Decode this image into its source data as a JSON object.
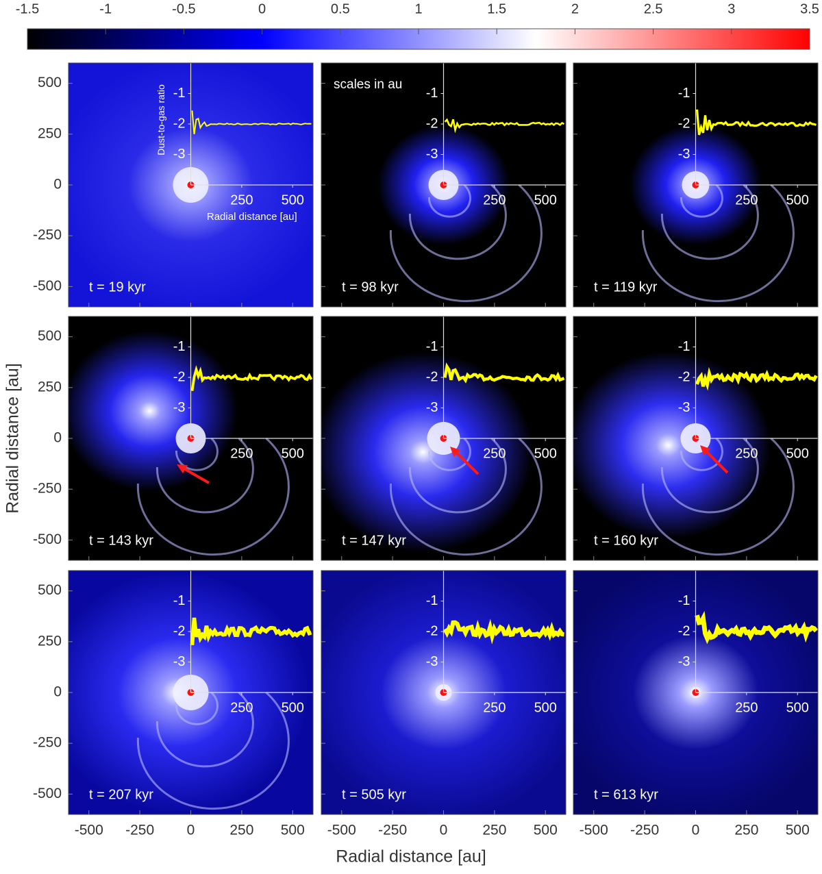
{
  "chart_data": {
    "type": "image-grid",
    "colorbar": {
      "lim": [
        -1.5,
        3.5
      ],
      "ticks": [
        -1.5,
        -1,
        -0.5,
        0,
        0.5,
        1,
        1.5,
        2,
        2.5,
        3,
        3.5
      ],
      "colormap": [
        {
          "value": -1.5,
          "color": "#000000"
        },
        {
          "value": 0,
          "color": "#0000ff"
        },
        {
          "value": 1.75,
          "color": "#ffffff"
        },
        {
          "value": 3.5,
          "color": "#ff0000"
        }
      ]
    },
    "xlabel": "Radial distance [au]",
    "ylabel": "Radial distance [au]",
    "xlim": [
      -600,
      600
    ],
    "ylim": [
      -600,
      600
    ],
    "xticks": [
      -500,
      -250,
      0,
      250,
      500
    ],
    "yticks": [
      -500,
      -250,
      0,
      250,
      500
    ],
    "inset": {
      "ylabel": "Dust-to-gas ratio",
      "xlabel": "Radial distance [au]",
      "ylim": [
        -4,
        0
      ],
      "yticks": [
        -1,
        -2,
        -3
      ],
      "xticks": [
        250,
        500
      ],
      "color": "#ffff00"
    },
    "note": "scales in au",
    "panels": [
      {
        "label": "t = 19 kyr"
      },
      {
        "label": "t = 98 kyr"
      },
      {
        "label": "t = 119 kyr"
      },
      {
        "label": "t = 143 kyr"
      },
      {
        "label": "t = 147 kyr"
      },
      {
        "label": "t = 160 kyr"
      },
      {
        "label": "t = 207 kyr"
      },
      {
        "label": "t = 505 kyr"
      },
      {
        "label": "t = 613 kyr"
      }
    ]
  }
}
